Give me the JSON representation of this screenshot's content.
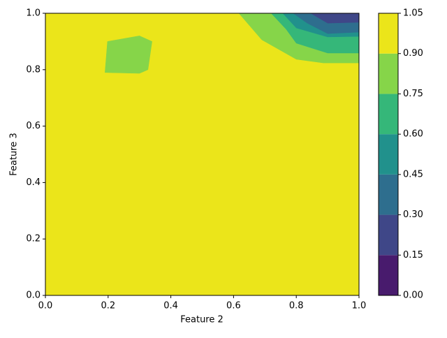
{
  "chart_data": {
    "type": "contour",
    "xlabel": "Feature 2",
    "ylabel": "Feature 3",
    "xlim": [
      0,
      1
    ],
    "ylim": [
      0,
      1
    ],
    "xticks": [
      {
        "value": 0,
        "label": "0.0"
      },
      {
        "value": 0.2,
        "label": "0.2"
      },
      {
        "value": 0.4,
        "label": "0.4"
      },
      {
        "value": 0.6,
        "label": "0.6"
      },
      {
        "value": 0.8,
        "label": "0.8"
      },
      {
        "value": 1,
        "label": "1.0"
      }
    ],
    "yticks": [
      {
        "value": 0,
        "label": "0.0"
      },
      {
        "value": 0.2,
        "label": "0.2"
      },
      {
        "value": 0.4,
        "label": "0.4"
      },
      {
        "value": 0.6,
        "label": "0.6"
      },
      {
        "value": 0.8,
        "label": "0.8"
      },
      {
        "value": 1,
        "label": "1.0"
      }
    ],
    "levels": [
      0,
      0.15,
      0.3,
      0.45,
      0.6,
      0.75,
      0.9,
      1.05
    ],
    "colors": [
      "#481b6d",
      "#3f4788",
      "#2e6e8e",
      "#21918c",
      "#35b779",
      "#86d549",
      "#ebe51a"
    ],
    "clim": [
      0,
      1.05
    ],
    "cticks": [
      {
        "value": 0,
        "label": "0.00"
      },
      {
        "value": 0.15,
        "label": "0.15"
      },
      {
        "value": 0.3,
        "label": "0.30"
      },
      {
        "value": 0.45,
        "label": "0.45"
      },
      {
        "value": 0.6,
        "label": "0.60"
      },
      {
        "value": 0.75,
        "label": "0.75"
      },
      {
        "value": 0.9,
        "label": "0.90"
      },
      {
        "value": 1.05,
        "label": "1.05"
      }
    ],
    "regions": [
      {
        "level": 0.9,
        "x": [
          0,
          1,
          1,
          0
        ],
        "y": [
          0,
          0,
          1,
          1
        ]
      },
      {
        "level": 0.75,
        "x": [
          0.19,
          0.198,
          0.3,
          0.34,
          0.327,
          0.3
        ],
        "y": [
          0.79,
          0.9,
          0.92,
          0.9,
          0.8,
          0.787
        ]
      },
      {
        "level": 0.75,
        "x": [
          0.617,
          0.69,
          0.8,
          0.886,
          1,
          1
        ],
        "y": [
          1,
          0.906,
          0.837,
          0.824,
          0.824,
          1
        ]
      },
      {
        "level": 0.6,
        "x": [
          0.72,
          0.768,
          0.8,
          0.9,
          1,
          1
        ],
        "y": [
          1,
          0.943,
          0.894,
          0.859,
          0.859,
          1
        ]
      },
      {
        "level": 0.45,
        "x": [
          0.757,
          0.8,
          0.9,
          1,
          1
        ],
        "y": [
          1,
          0.948,
          0.916,
          0.918,
          1
        ]
      },
      {
        "level": 0.3,
        "x": [
          0.79,
          0.835,
          0.9,
          1,
          1
        ],
        "y": [
          1,
          0.965,
          0.928,
          0.933,
          1
        ]
      },
      {
        "level": 0.15,
        "x": [
          0.846,
          0.9,
          1,
          1
        ],
        "y": [
          1,
          0.965,
          0.968,
          1
        ]
      }
    ]
  }
}
